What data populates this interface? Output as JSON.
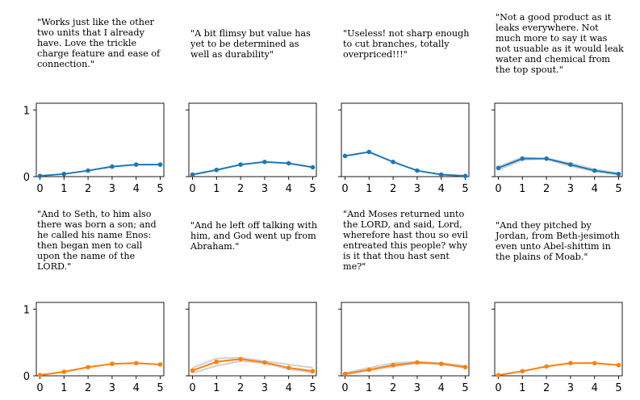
{
  "chart_data": [
    {
      "type": "line",
      "quote": "\"Works just like the other two units that I already have. Love the trickle charge feature and ease of connection.\"",
      "color": "#1f77b4",
      "x": [
        0,
        1,
        2,
        3,
        4,
        5
      ],
      "values": [
        0.01,
        0.04,
        0.09,
        0.15,
        0.18,
        0.18
      ],
      "bands": [],
      "ylim": [
        0,
        1.1
      ],
      "yticks": [
        0,
        1
      ],
      "xticks": [
        0,
        1,
        2,
        3,
        4,
        5
      ]
    },
    {
      "type": "line",
      "quote": "\"A bit flimsy but value has yet to be determined as well as durability\"",
      "color": "#1f77b4",
      "x": [
        0,
        1,
        2,
        3,
        4,
        5
      ],
      "values": [
        0.03,
        0.1,
        0.18,
        0.22,
        0.2,
        0.14
      ],
      "bands": [],
      "ylim": [
        0,
        1.1
      ],
      "yticks": [
        0,
        1
      ],
      "xticks": [
        0,
        1,
        2,
        3,
        4,
        5
      ]
    },
    {
      "type": "line",
      "quote": "\"Useless! not sharp enough to cut branches, totally overpriced!!!\"",
      "color": "#1f77b4",
      "x": [
        0,
        1,
        2,
        3,
        4,
        5
      ],
      "values": [
        0.31,
        0.37,
        0.22,
        0.09,
        0.03,
        0.01
      ],
      "bands": [],
      "ylim": [
        0,
        1.1
      ],
      "yticks": [
        0,
        1
      ],
      "xticks": [
        0,
        1,
        2,
        3,
        4,
        5
      ]
    },
    {
      "type": "line",
      "quote": "\"Not a good product as it leaks everywhere. Not much more to say it was not usuable as it would leak water and chemical from the top spout.\"",
      "color": "#1f77b4",
      "x": [
        0,
        1,
        2,
        3,
        4,
        5
      ],
      "values": [
        0.13,
        0.27,
        0.27,
        0.18,
        0.09,
        0.04
      ],
      "bands": [
        [
          0.1,
          0.25,
          0.27,
          0.2,
          0.11,
          0.05
        ],
        [
          0.15,
          0.29,
          0.26,
          0.16,
          0.08,
          0.03
        ]
      ],
      "ylim": [
        0,
        1.1
      ],
      "yticks": [
        0,
        1
      ],
      "xticks": [
        0,
        1,
        2,
        3,
        4,
        5
      ]
    },
    {
      "type": "line",
      "quote": "\"And to Seth, to him also there was born a son; and he called his name Enos: then began men to call upon the name of the LORD.\"",
      "color": "#ff7f0e",
      "x": [
        0,
        1,
        2,
        3,
        4,
        5
      ],
      "values": [
        0.01,
        0.06,
        0.13,
        0.18,
        0.19,
        0.17
      ],
      "bands": [],
      "ylim": [
        0,
        1.1
      ],
      "yticks": [
        0,
        1
      ],
      "xticks": [
        0,
        1,
        2,
        3,
        4,
        5
      ]
    },
    {
      "type": "line",
      "quote": "\"And he left off talking with him, and God went up from Abraham.\"",
      "color": "#ff7f0e",
      "x": [
        0,
        1,
        2,
        3,
        4,
        5
      ],
      "values": [
        0.08,
        0.21,
        0.25,
        0.2,
        0.12,
        0.07
      ],
      "bands": [
        [
          0.12,
          0.26,
          0.27,
          0.22,
          0.17,
          0.12
        ],
        [
          0.04,
          0.15,
          0.22,
          0.19,
          0.1,
          0.05
        ]
      ],
      "ylim": [
        0,
        1.1
      ],
      "yticks": [
        0,
        1
      ],
      "xticks": [
        0,
        1,
        2,
        3,
        4,
        5
      ]
    },
    {
      "type": "line",
      "quote": "\"And Moses returned unto the LORD, and said, Lord, wherefore hast thou so evil entreated this people? why is it that thou hast sent me?\"",
      "color": "#ff7f0e",
      "x": [
        0,
        1,
        2,
        3,
        4,
        5
      ],
      "values": [
        0.03,
        0.09,
        0.16,
        0.2,
        0.18,
        0.13
      ],
      "bands": [
        [
          0.04,
          0.12,
          0.19,
          0.21,
          0.19,
          0.15
        ],
        [
          0.02,
          0.08,
          0.14,
          0.19,
          0.18,
          0.12
        ]
      ],
      "ylim": [
        0,
        1.1
      ],
      "yticks": [
        0,
        1
      ],
      "xticks": [
        0,
        1,
        2,
        3,
        4,
        5
      ]
    },
    {
      "type": "line",
      "quote": "\"And they pitched by Jordan, from Beth-jesimoth even unto Abel-shittim in the plains of Moab.\"",
      "color": "#ff7f0e",
      "x": [
        0,
        1,
        2,
        3,
        4,
        5
      ],
      "values": [
        0.01,
        0.07,
        0.14,
        0.19,
        0.19,
        0.16
      ],
      "bands": [],
      "ylim": [
        0,
        1.1
      ],
      "yticks": [
        0,
        1
      ],
      "xticks": [
        0,
        1,
        2,
        3,
        4,
        5
      ]
    }
  ]
}
